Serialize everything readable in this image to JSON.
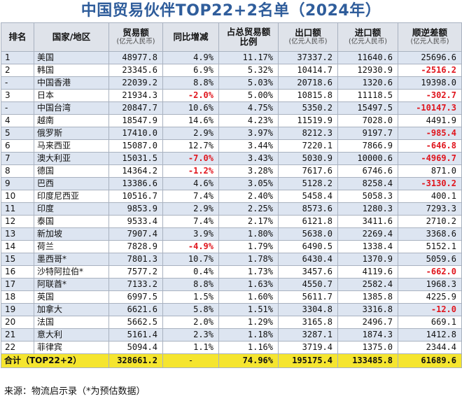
{
  "title": "中国贸易伙伴TOP22+2名单（2024年）",
  "header": {
    "rank": "排名",
    "country": "国家/地区",
    "trade": "贸易额",
    "trade_unit": "(亿元人民币)",
    "yoy": "同比增减",
    "share": "占总贸易额",
    "share2": "比例",
    "export": "出口额",
    "export_unit": "(亿元人民币)",
    "import": "进口额",
    "import_unit": "(亿元人民币)",
    "balance": "顺逆差额",
    "balance_unit": "(亿元人民币)"
  },
  "rows": [
    {
      "rank": "1",
      "country": "美国",
      "trade": "48977.8",
      "yoy": "4.9%",
      "share": "11.17%",
      "export": "37337.2",
      "import": "11640.6",
      "balance": "25696.6"
    },
    {
      "rank": "2",
      "country": "韩国",
      "trade": "23345.6",
      "yoy": "6.9%",
      "share": "5.32%",
      "export": "10414.7",
      "import": "12930.9",
      "balance": "-2516.2"
    },
    {
      "rank": "-",
      "country": "中国香港",
      "trade": "22039.2",
      "yoy": "8.8%",
      "share": "5.03%",
      "export": "20718.6",
      "import": "1320.6",
      "balance": "19398.0"
    },
    {
      "rank": "3",
      "country": "日本",
      "trade": "21934.3",
      "yoy": "-2.0%",
      "share": "5.00%",
      "export": "10815.8",
      "import": "11118.5",
      "balance": "-302.7"
    },
    {
      "rank": "-",
      "country": "中国台湾",
      "trade": "20847.7",
      "yoy": "10.6%",
      "share": "4.75%",
      "export": "5350.2",
      "import": "15497.5",
      "balance": "-10147.3"
    },
    {
      "rank": "4",
      "country": "越南",
      "trade": "18547.9",
      "yoy": "14.6%",
      "share": "4.23%",
      "export": "11519.9",
      "import": "7028.0",
      "balance": "4491.9"
    },
    {
      "rank": "5",
      "country": "俄罗斯",
      "trade": "17410.0",
      "yoy": "2.9%",
      "share": "3.97%",
      "export": "8212.3",
      "import": "9197.7",
      "balance": "-985.4"
    },
    {
      "rank": "6",
      "country": "马来西亚",
      "trade": "15087.0",
      "yoy": "12.7%",
      "share": "3.44%",
      "export": "7220.1",
      "import": "7866.9",
      "balance": "-646.8"
    },
    {
      "rank": "7",
      "country": "澳大利亚",
      "trade": "15031.5",
      "yoy": "-7.0%",
      "share": "3.43%",
      "export": "5030.9",
      "import": "10000.6",
      "balance": "-4969.7"
    },
    {
      "rank": "8",
      "country": "德国",
      "trade": "14364.2",
      "yoy": "-1.2%",
      "share": "3.28%",
      "export": "7617.6",
      "import": "6746.6",
      "balance": "871.0"
    },
    {
      "rank": "9",
      "country": "巴西",
      "trade": "13386.6",
      "yoy": "4.6%",
      "share": "3.05%",
      "export": "5128.2",
      "import": "8258.4",
      "balance": "-3130.2"
    },
    {
      "rank": "10",
      "country": "印度尼西亚",
      "trade": "10516.7",
      "yoy": "7.4%",
      "share": "2.40%",
      "export": "5458.4",
      "import": "5058.3",
      "balance": "400.1"
    },
    {
      "rank": "11",
      "country": "印度",
      "trade": "9853.9",
      "yoy": "2.9%",
      "share": "2.25%",
      "export": "8573.6",
      "import": "1280.3",
      "balance": "7293.3"
    },
    {
      "rank": "12",
      "country": "泰国",
      "trade": "9533.4",
      "yoy": "7.4%",
      "share": "2.17%",
      "export": "6121.8",
      "import": "3411.6",
      "balance": "2710.2"
    },
    {
      "rank": "13",
      "country": "新加坡",
      "trade": "7907.4",
      "yoy": "3.9%",
      "share": "1.80%",
      "export": "5638.0",
      "import": "2269.4",
      "balance": "3368.6"
    },
    {
      "rank": "14",
      "country": "荷兰",
      "trade": "7828.9",
      "yoy": "-4.9%",
      "share": "1.79%",
      "export": "6490.5",
      "import": "1338.4",
      "balance": "5152.1"
    },
    {
      "rank": "15",
      "country": "墨西哥*",
      "trade": "7801.3",
      "yoy": "10.7%",
      "share": "1.78%",
      "export": "6430.4",
      "import": "1370.9",
      "balance": "5059.6"
    },
    {
      "rank": "16",
      "country": "沙特阿拉伯*",
      "trade": "7577.2",
      "yoy": "0.4%",
      "share": "1.73%",
      "export": "3457.6",
      "import": "4119.6",
      "balance": "-662.0"
    },
    {
      "rank": "17",
      "country": "阿联酋*",
      "trade": "7133.2",
      "yoy": "8.8%",
      "share": "1.63%",
      "export": "4550.7",
      "import": "2582.4",
      "balance": "1968.3"
    },
    {
      "rank": "18",
      "country": "英国",
      "trade": "6997.5",
      "yoy": "1.5%",
      "share": "1.60%",
      "export": "5611.7",
      "import": "1385.8",
      "balance": "4225.9"
    },
    {
      "rank": "19",
      "country": "加拿大",
      "trade": "6621.6",
      "yoy": "5.8%",
      "share": "1.51%",
      "export": "3304.8",
      "import": "3316.8",
      "balance": "-12.0"
    },
    {
      "rank": "20",
      "country": "法国",
      "trade": "5662.5",
      "yoy": "2.0%",
      "share": "1.29%",
      "export": "3165.8",
      "import": "2496.7",
      "balance": "669.1"
    },
    {
      "rank": "21",
      "country": "意大利",
      "trade": "5161.4",
      "yoy": "2.3%",
      "share": "1.18%",
      "export": "3287.1",
      "import": "1874.3",
      "balance": "1412.8"
    },
    {
      "rank": "22",
      "country": "菲律宾",
      "trade": "5094.4",
      "yoy": "1.1%",
      "share": "1.16%",
      "export": "3719.4",
      "import": "1375.0",
      "balance": "2344.4"
    }
  ],
  "total": {
    "label": "合计（TOP22+2）",
    "trade": "328661.2",
    "yoy": "-",
    "share": "74.96%",
    "export": "195175.4",
    "import": "133485.8",
    "balance": "61689.6"
  },
  "source": "来源：物流启示录（*为预估数据）",
  "colors": {
    "title": "#2f5d9b",
    "negative": "#e0151d",
    "total_bg": "#f5e52f",
    "stripe": "#dde5f1",
    "header_bg": "#dfe3ea"
  }
}
